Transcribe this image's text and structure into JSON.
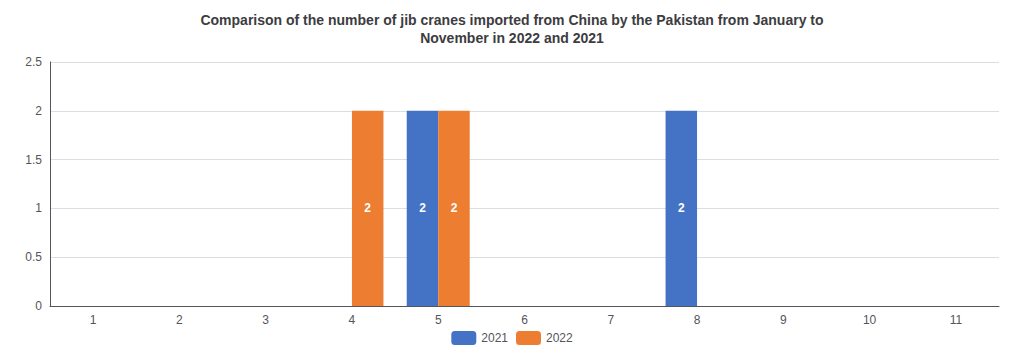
{
  "chart_data": {
    "type": "bar",
    "title": "Comparison of the number of jib cranes imported from China by the Pakistan from January to\nNovember in 2022 and 2021",
    "categories": [
      "1",
      "2",
      "3",
      "4",
      "5",
      "6",
      "7",
      "8",
      "9",
      "10",
      "11"
    ],
    "series": [
      {
        "name": "2021",
        "color": "#4472C4",
        "values": [
          0,
          0,
          0,
          0,
          2,
          0,
          0,
          2,
          0,
          0,
          0
        ]
      },
      {
        "name": "2022",
        "color": "#ED7D31",
        "values": [
          0,
          0,
          0,
          2,
          2,
          0,
          0,
          0,
          0,
          0,
          0
        ]
      }
    ],
    "ylim": [
      0,
      2.5
    ],
    "yticks": [
      0,
      0.5,
      1,
      1.5,
      2,
      2.5
    ],
    "grid": true,
    "legend": "bottom",
    "data_labels": true
  }
}
